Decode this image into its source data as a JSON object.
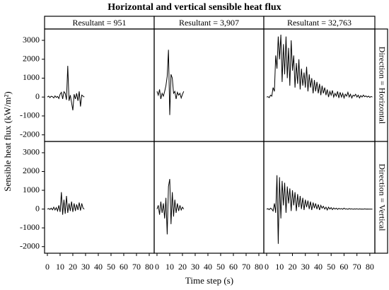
{
  "chart_data": {
    "type": "line",
    "title": "Horizontal and vertical sensible heat flux",
    "x_label": "Time step (s)",
    "y_label": "Sensible heat flux (kW/m²)",
    "columns": [
      "Resultant = 951",
      "Resultant = 3,907",
      "Resultant = 32,763"
    ],
    "rows": [
      "Direction = Horizontal",
      "Direction = Vertical"
    ],
    "color": "#000000",
    "xlim": [
      -2.2,
      83.9
    ],
    "ylim": [
      -2350,
      3600
    ],
    "xticks": [
      0,
      10,
      20,
      30,
      40,
      50,
      60,
      70,
      80
    ],
    "yticks": [
      -2000,
      -1000,
      0,
      1000,
      2000,
      3000
    ],
    "panels": [
      {
        "x": [
          0,
          1,
          2,
          3,
          4,
          5,
          6,
          7,
          8,
          9,
          10,
          11,
          12,
          13,
          14,
          15,
          16,
          17,
          18,
          19,
          20,
          21,
          22,
          23,
          24,
          25,
          26,
          27,
          28,
          29
        ],
        "values": [
          0,
          50,
          -30,
          40,
          20,
          -50,
          60,
          -20,
          30,
          -80,
          150,
          250,
          -100,
          280,
          200,
          -150,
          1650,
          -200,
          100,
          -300,
          -700,
          150,
          -100,
          200,
          -200,
          300,
          -500,
          100,
          50,
          0
        ]
      },
      {
        "x": [
          0,
          1,
          2,
          3,
          4,
          5,
          6,
          7,
          8,
          9,
          10,
          11,
          12,
          13,
          14,
          15,
          16,
          17,
          18,
          19,
          20,
          21
        ],
        "values": [
          300,
          100,
          400,
          -100,
          200,
          50,
          300,
          600,
          1100,
          2500,
          -950,
          1200,
          1000,
          200,
          300,
          -100,
          250,
          100,
          200,
          -50,
          150,
          300
        ]
      },
      {
        "x": [
          0,
          1,
          2,
          3,
          4,
          5,
          6,
          7,
          8,
          9,
          10,
          11,
          12,
          13,
          14,
          15,
          16,
          17,
          18,
          19,
          20,
          21,
          22,
          23,
          24,
          25,
          26,
          27,
          28,
          29,
          30,
          31,
          32,
          33,
          34,
          35,
          36,
          37,
          38,
          39,
          40,
          41,
          42,
          43,
          44,
          45,
          46,
          47,
          48,
          49,
          50,
          51,
          52,
          53,
          54,
          55,
          56,
          57,
          58,
          59,
          60,
          61,
          62,
          63,
          64,
          65,
          66,
          67,
          68,
          69,
          70,
          71,
          72,
          73,
          74,
          75,
          76,
          77,
          78,
          79,
          80,
          81,
          82
        ],
        "values": [
          0,
          20,
          -30,
          100,
          50,
          500,
          300,
          2200,
          1500,
          3200,
          2000,
          3300,
          800,
          2800,
          1200,
          3200,
          1000,
          2600,
          600,
          3000,
          1400,
          2200,
          500,
          1800,
          700,
          2000,
          400,
          1500,
          600,
          1300,
          500,
          1600,
          300,
          1200,
          500,
          1000,
          200,
          900,
          300,
          800,
          200,
          700,
          100,
          600,
          200,
          500,
          100,
          400,
          0,
          300,
          100,
          350,
          0,
          200,
          50,
          300,
          -50,
          250,
          0,
          200,
          -50,
          150,
          50,
          250,
          0,
          150,
          -50,
          100,
          50,
          150,
          0,
          100,
          -50,
          80,
          0,
          100,
          20,
          60,
          0,
          50,
          -20,
          30,
          0
        ]
      },
      {
        "x": [
          0,
          1,
          2,
          3,
          4,
          5,
          6,
          7,
          8,
          9,
          10,
          11,
          12,
          13,
          14,
          15,
          16,
          17,
          18,
          19,
          20,
          21,
          22,
          23,
          24,
          25,
          26,
          27,
          28,
          29
        ],
        "values": [
          0,
          30,
          -20,
          50,
          -40,
          100,
          -50,
          80,
          -100,
          200,
          -150,
          900,
          -300,
          500,
          -250,
          700,
          -200,
          300,
          -100,
          400,
          -150,
          300,
          -100,
          250,
          -50,
          350,
          -80,
          300,
          50,
          0
        ]
      },
      {
        "x": [
          0,
          1,
          2,
          3,
          4,
          5,
          6,
          7,
          8,
          9,
          10,
          11,
          12,
          13,
          14,
          15,
          16,
          17,
          18,
          19,
          20,
          21
        ],
        "values": [
          0,
          200,
          -300,
          400,
          -200,
          300,
          -500,
          600,
          -1350,
          1200,
          1600,
          -800,
          900,
          -400,
          500,
          -200,
          300,
          -100,
          200,
          -50,
          100,
          0
        ]
      },
      {
        "x": [
          0,
          1,
          2,
          3,
          4,
          5,
          6,
          7,
          8,
          9,
          10,
          11,
          12,
          13,
          14,
          15,
          16,
          17,
          18,
          19,
          20,
          21,
          22,
          23,
          24,
          25,
          26,
          27,
          28,
          29,
          30,
          31,
          32,
          33,
          34,
          35,
          36,
          37,
          38,
          39,
          40,
          41,
          42,
          43,
          44,
          45,
          46,
          47,
          48,
          49,
          50,
          51,
          52,
          53,
          54,
          55,
          56,
          57,
          58,
          59,
          60,
          61,
          62,
          63,
          64,
          65,
          66,
          67,
          68,
          69,
          70,
          71,
          72,
          73,
          74,
          75,
          76,
          77,
          78,
          79,
          80,
          81,
          82
        ],
        "values": [
          0,
          20,
          -30,
          50,
          0,
          -100,
          300,
          -200,
          1800,
          -1850,
          1700,
          -500,
          1500,
          200,
          1400,
          -200,
          1200,
          300,
          1100,
          -100,
          1000,
          200,
          900,
          -100,
          800,
          100,
          700,
          0,
          600,
          -50,
          500,
          100,
          450,
          0,
          400,
          -50,
          350,
          50,
          300,
          0,
          250,
          -50,
          200,
          50,
          150,
          0,
          100,
          -50,
          100,
          0,
          80,
          -30,
          60,
          0,
          50,
          -20,
          40,
          0,
          30,
          -10,
          50,
          0,
          20,
          -10,
          30,
          0,
          20,
          -10,
          10,
          0,
          20,
          -10,
          10,
          0,
          5,
          -5,
          10,
          0,
          5,
          0,
          0,
          0,
          0
        ]
      }
    ]
  }
}
